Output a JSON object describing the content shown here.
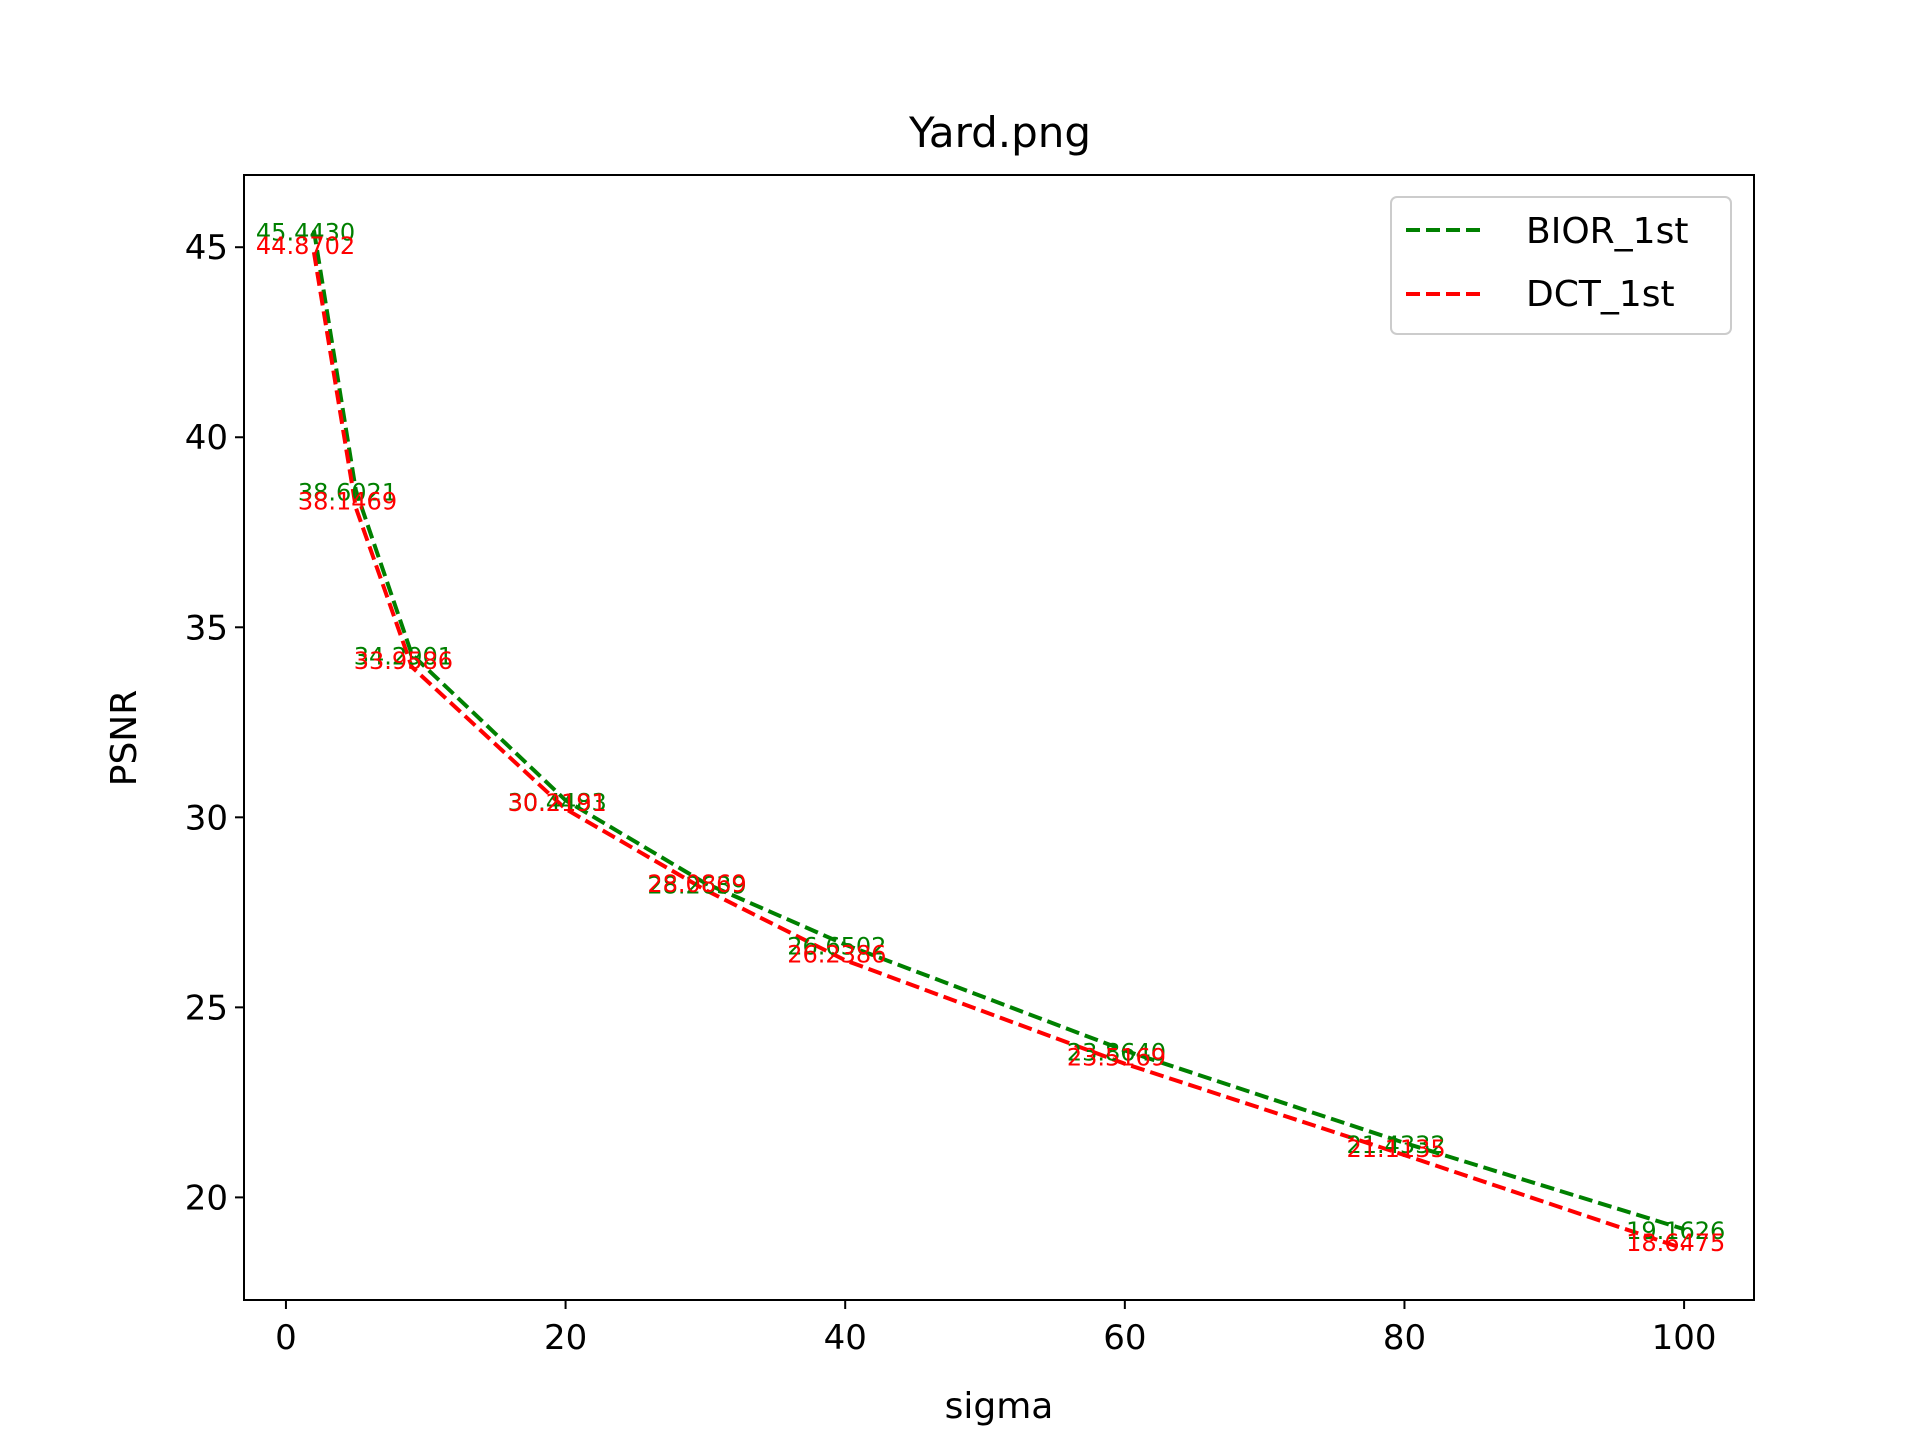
{
  "chart_data": {
    "type": "line",
    "title": "Yard.png",
    "xlabel": "sigma",
    "ylabel": "PSNR",
    "xlim": [
      -3,
      105
    ],
    "ylim": [
      17.3,
      46.9
    ],
    "xticks": [
      0,
      20,
      40,
      60,
      80,
      100
    ],
    "yticks": [
      20,
      25,
      30,
      35,
      40,
      45
    ],
    "xtick_labels": [
      "0",
      "20",
      "40",
      "60",
      "80",
      "100"
    ],
    "ytick_labels": [
      "20",
      "25",
      "30",
      "35",
      "40",
      "45"
    ],
    "grid": false,
    "legend_position": "top-right",
    "x": [
      2,
      5,
      9,
      20,
      30,
      40,
      60,
      80,
      100
    ],
    "series": [
      {
        "name": "BIOR_1st",
        "color": "#008000",
        "linestyle": "dashed",
        "values": [
          45.443,
          38.6021,
          34.2901,
          30.4483,
          28.2639,
          26.6502,
          23.864,
          21.4332,
          19.1626
        ],
        "labels": [
          "45.4430",
          "38.6021",
          "34.2901",
          "30.4483",
          "28.2639",
          "26.6502",
          "23.8640",
          "21.4332",
          "19.1626"
        ]
      },
      {
        "name": "DCT_1st",
        "color": "#ff0000",
        "linestyle": "dashed",
        "values": [
          44.8702,
          38.1469,
          33.9586,
          30.2191,
          28.0869,
          26.2386,
          23.5169,
          21.1135,
          18.6475
        ],
        "labels": [
          "44.8702",
          "38.1469",
          "33.9586",
          "30.2191",
          "28.0869",
          "26.2386",
          "23.5169",
          "21.1135",
          "18.6475"
        ]
      }
    ]
  }
}
